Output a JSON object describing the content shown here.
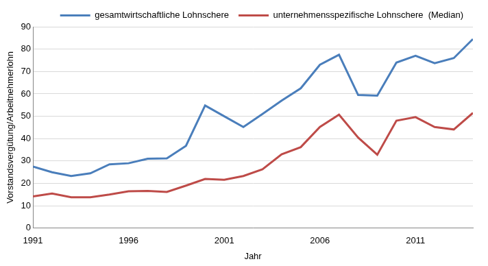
{
  "chart_data": {
    "type": "line",
    "x_label": "Jahr",
    "y_label": "Vorstandsvergütung/Arbeitnehmerlohn",
    "x": [
      1991,
      1992,
      1993,
      1994,
      1995,
      1996,
      1997,
      1998,
      1999,
      2000,
      2001,
      2002,
      2003,
      2004,
      2005,
      2006,
      2007,
      2008,
      2009,
      2010,
      2011,
      2012,
      2013,
      2014
    ],
    "series": [
      {
        "name": "gesamtwirtschaftliche Lohnschere",
        "color": "#4a7ebb",
        "values": [
          27.5,
          25,
          23.3,
          24.5,
          28.5,
          29,
          31,
          31.2,
          36.8,
          54.8,
          50,
          45.2,
          51,
          57,
          62.5,
          73,
          77.5,
          59.5,
          59.2,
          74,
          77,
          73.7,
          76,
          84.5
        ]
      },
      {
        "name": "unternehmensspezifische Lohnschere  (Median)",
        "color": "#be4b48",
        "values": [
          14.2,
          15.5,
          13.8,
          13.8,
          15,
          16.5,
          16.6,
          16.2,
          19,
          22,
          21.6,
          23.3,
          26.3,
          33,
          36.2,
          45.2,
          50.7,
          40.5,
          32.8,
          48,
          49.6,
          45.2,
          44.1,
          51.5
        ]
      }
    ],
    "xlim": [
      1991,
      2014
    ],
    "xticks": [
      1991,
      1996,
      2001,
      2006,
      2011
    ],
    "ylim": [
      0,
      90
    ],
    "yticks": [
      0,
      10,
      20,
      30,
      40,
      50,
      60,
      70,
      80,
      90
    ],
    "grid": true,
    "legend": "top"
  }
}
